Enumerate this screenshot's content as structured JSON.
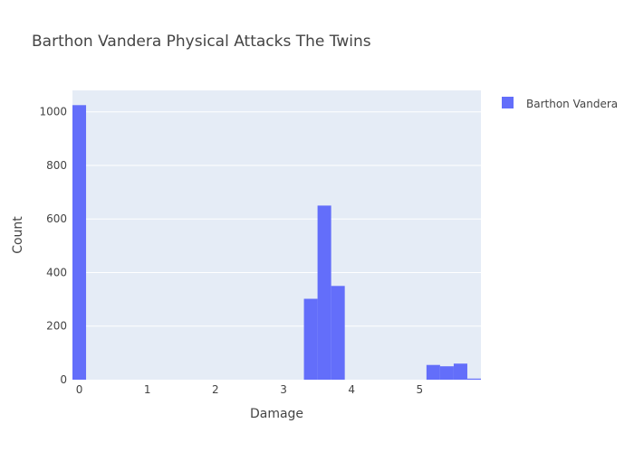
{
  "chart_data": {
    "type": "bar",
    "title": "Barthon Vandera Physical Attacks The Twins",
    "xlabel": "Damage",
    "ylabel": "Count",
    "xlim": [
      -0.1,
      5.9
    ],
    "ylim": [
      0,
      1080
    ],
    "xticks": [
      0,
      1,
      2,
      3,
      4,
      5
    ],
    "yticks": [
      0,
      200,
      400,
      600,
      800,
      1000
    ],
    "grid": true,
    "legend_position": "top-right",
    "series": [
      {
        "name": "Barthon Vandera",
        "color": "#636efa",
        "bin_width": 0.2,
        "bins": [
          {
            "x0": -0.1,
            "x1": 0.1,
            "count": 1025
          },
          {
            "x0": 3.3,
            "x1": 3.5,
            "count": 302
          },
          {
            "x0": 3.5,
            "x1": 3.7,
            "count": 650
          },
          {
            "x0": 3.7,
            "x1": 3.9,
            "count": 350
          },
          {
            "x0": 5.1,
            "x1": 5.3,
            "count": 55
          },
          {
            "x0": 5.3,
            "x1": 5.5,
            "count": 50
          },
          {
            "x0": 5.5,
            "x1": 5.7,
            "count": 60
          },
          {
            "x0": 5.7,
            "x1": 5.9,
            "count": 4
          }
        ]
      }
    ]
  }
}
